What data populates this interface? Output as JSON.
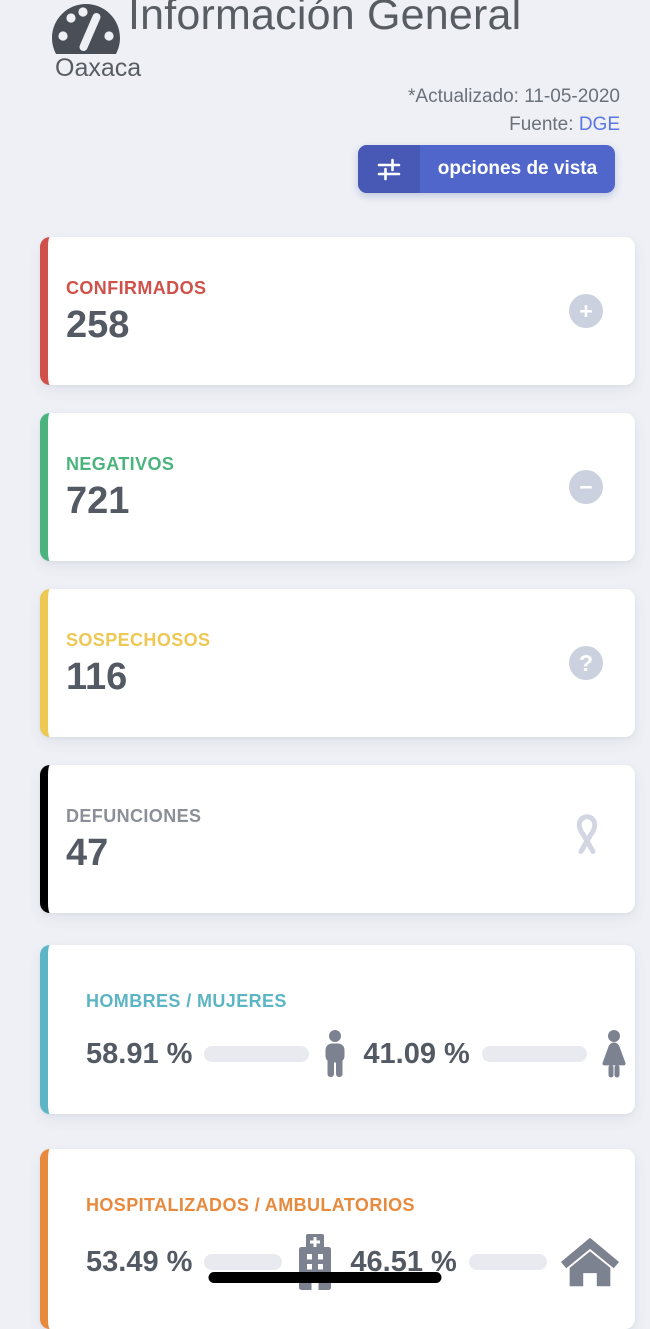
{
  "header": {
    "title": "Información General",
    "subtitle": "Oaxaca",
    "updated": "*Actualizado: 11-05-2020",
    "source_label": "Fuente: ",
    "source_link": "DGE",
    "view_options": "opciones de vista"
  },
  "stat_cards": [
    {
      "label": "CONFIRMADOS",
      "value": "258",
      "accent": "#d0504a",
      "label_color": "#d0504a",
      "icon": "plus-circle-icon",
      "glyph": "+"
    },
    {
      "label": "NEGATIVOS",
      "value": "721",
      "accent": "#4bb47e",
      "label_color": "#4bb47e",
      "icon": "minus-circle-icon",
      "glyph": "−"
    },
    {
      "label": "SOSPECHOSOS",
      "value": "116",
      "accent": "#edc852",
      "label_color": "#edc852",
      "icon": "question-circle-icon",
      "glyph": "?"
    },
    {
      "label": "DEFUNCIONES",
      "value": "47",
      "accent": "#000000",
      "label_color": "#8b9098",
      "icon": "awareness-ribbon-icon"
    }
  ],
  "split_cards": [
    {
      "label": "HOMBRES / MUJERES",
      "accent": "#5bb5c4",
      "label_color": "#5bb5c4",
      "left": {
        "text": "58.91 %",
        "value": 58.91,
        "icon": "male-icon"
      },
      "right": {
        "text": "41.09 %",
        "value": 41.09,
        "icon": "female-icon"
      }
    },
    {
      "label": "HOSPITALIZADOS / AMBULATORIOS",
      "accent": "#e78a3e",
      "label_color": "#e78a3e",
      "left": {
        "text": "53.49 %",
        "value": 53.49,
        "icon": "hospital-icon"
      },
      "right": {
        "text": "46.51 %",
        "value": 46.51,
        "icon": "home-icon"
      }
    }
  ],
  "colors": {
    "background": "#eef0f5",
    "title": "#585d64",
    "meta": "#6b717b",
    "link": "#5b76e0",
    "button": "#5166cb",
    "button_dark": "#4759b4",
    "value": "#545a63",
    "icon_circle": "#cbd1de",
    "ribbon_icon": "#d2d6e2",
    "figure_icon": "#7d8290",
    "bar_fill": "#5bb5c4",
    "bar_track": "#e8eaf0"
  }
}
